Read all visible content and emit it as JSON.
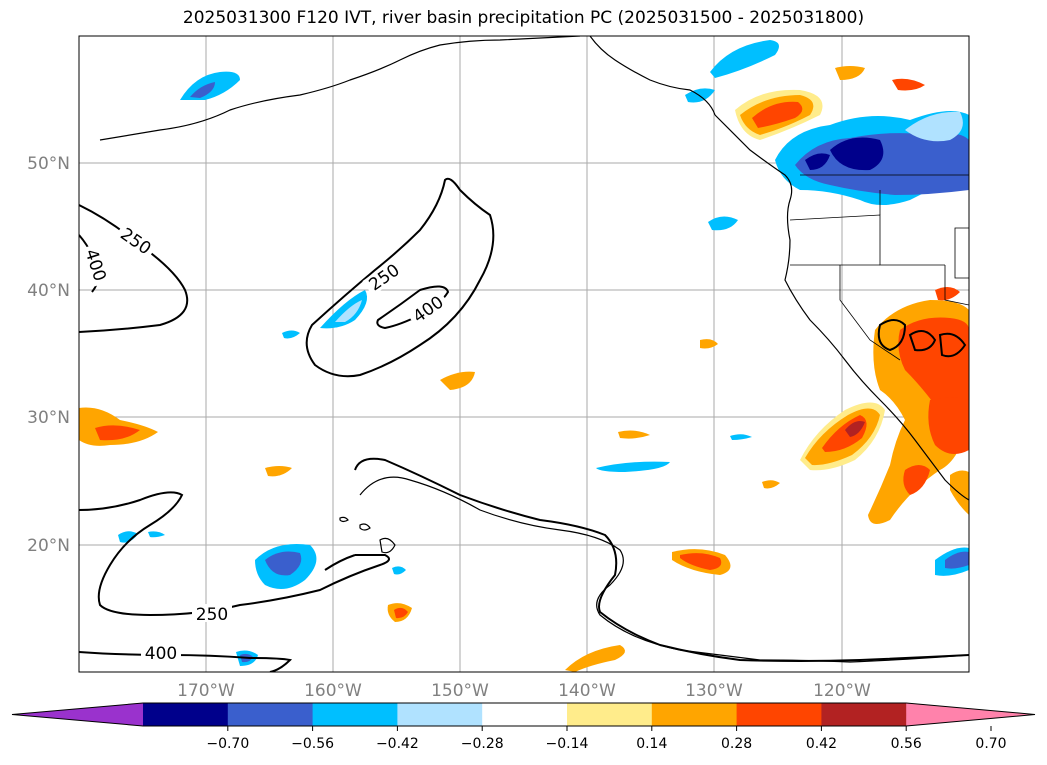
{
  "title": "2025031300 F120 IVT, river basin precipitation PC (2025031500 - 2025031800)",
  "map": {
    "latitude_labels": [
      "50°N",
      "40°N",
      "30°N",
      "20°N"
    ],
    "longitude_labels": [
      "170°W",
      "160°W",
      "150°W",
      "140°W",
      "130°W",
      "120°W"
    ],
    "extent": {
      "lon_min": -180,
      "lon_max": -110,
      "lat_min": 10,
      "lat_max": 60
    },
    "gridlines": true
  },
  "ivt_contours": {
    "levels": [
      250,
      400
    ],
    "labels": [
      "250",
      "400",
      "250",
      "400",
      "250",
      "400"
    ]
  },
  "colorbar": {
    "ticks": [
      "−0.70",
      "−0.56",
      "−0.42",
      "−0.28",
      "−0.14",
      "0.14",
      "0.28",
      "0.42",
      "0.56",
      "0.70"
    ],
    "colors": [
      "#9a32cd",
      "#00008b",
      "#3a5fcd",
      "#00bfff",
      "#b0e2ff",
      "#ffffff",
      "#ffec8b",
      "#ffa500",
      "#ff4500",
      "#b22222",
      "#ff82ab"
    ],
    "extend": "both"
  }
}
